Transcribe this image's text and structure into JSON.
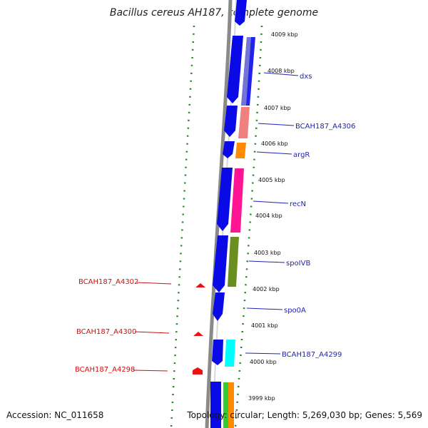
{
  "header": {
    "title": "Bacillus cereus AH187, complete genome"
  },
  "footer": {
    "accession": "Accession: NC_011658",
    "topology": "Topology: circular; Length: 5,269,030 bp; Genes: 5,569"
  },
  "scale_labels": [
    "4009 kbp",
    "4008 kbp",
    "4007 kbp",
    "4006 kbp",
    "4005 kbp",
    "4004 kbp",
    "4003 kbp",
    "4002 kbp",
    "4001 kbp",
    "4000 kbp",
    "3999 kbp"
  ],
  "gene_labels_right": [
    "dxs",
    "BCAH187_A4306",
    "argR",
    "recN",
    "spoIVB",
    "spo0A",
    "BCAH187_A4299"
  ],
  "gene_labels_left": [
    "BCAH187_A4302",
    "BCAH187_A4300",
    "BCAH187_A4298"
  ],
  "colors": {
    "cds": "#0a0ae6",
    "backbone": "#8a8a8a",
    "gc_skew_dots": "#1a8a1a",
    "label_blue": "#1f24b8",
    "label_red": "#cc1111",
    "feature_red": "#ee1111"
  }
}
